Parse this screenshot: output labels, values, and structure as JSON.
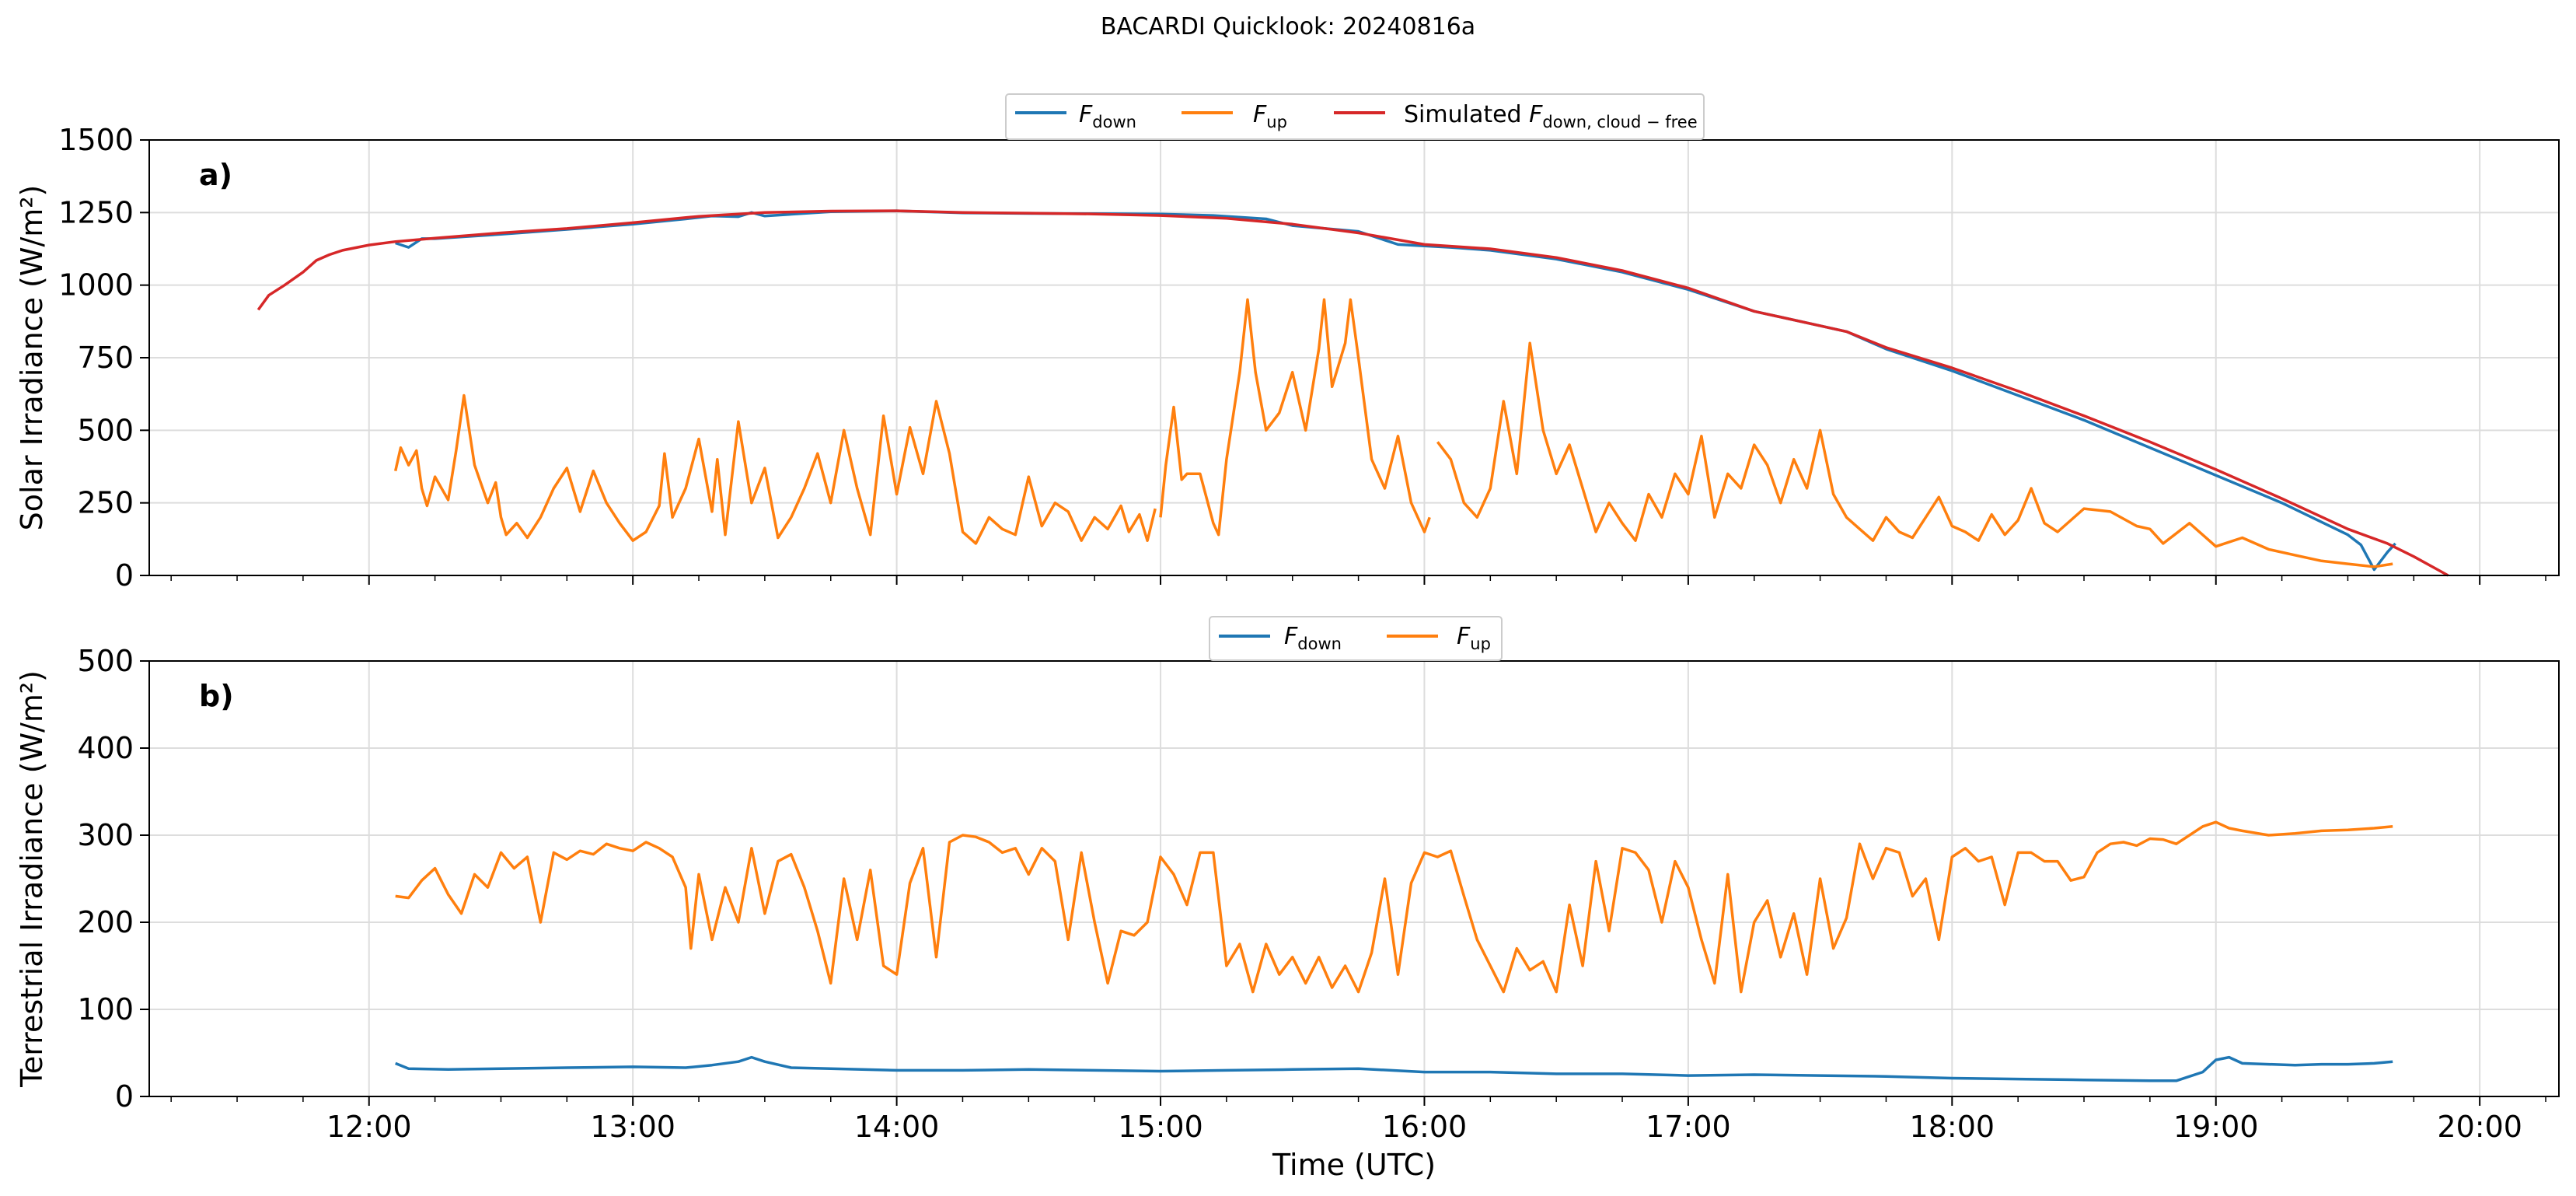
{
  "figure": {
    "suptitle": "BACARDI Quicklook: 20240816a"
  },
  "xaxis": {
    "label": "Time (UTC)",
    "lim": [
      11.167,
      20.3
    ],
    "ticks": [
      12,
      13,
      14,
      15,
      16,
      17,
      18,
      19,
      20
    ],
    "tick_labels": [
      "12:00",
      "13:00",
      "14:00",
      "15:00",
      "16:00",
      "17:00",
      "18:00",
      "19:00",
      "20:00"
    ],
    "minor_step": 0.25
  },
  "colors": {
    "fdown": "#1f77b4",
    "fup": "#ff7f0e",
    "sim": "#d62728",
    "grid": "#dddddd"
  },
  "chart_data": [
    {
      "type": "line",
      "panel": "a)",
      "ylabel": "Solar Irradiance (W/m²)",
      "ylim": [
        0,
        1500
      ],
      "yticks": [
        0,
        250,
        500,
        750,
        1000,
        1250,
        1500
      ],
      "grid": true,
      "legend": {
        "placement": "top-center, above axes",
        "entries": [
          "F_down",
          "F_up",
          "Simulated F_down,cloud−free"
        ]
      },
      "series": [
        {
          "name": "F_down",
          "key": "fdown",
          "x": [
            12.1,
            12.15,
            12.2,
            12.25,
            12.5,
            12.75,
            13.0,
            13.2,
            13.3,
            13.4,
            13.45,
            13.5,
            13.75,
            14.0,
            14.25,
            14.5,
            14.75,
            15.0,
            15.2,
            15.4,
            15.5,
            15.75,
            15.9,
            16.0,
            16.1,
            16.25,
            16.5,
            16.75,
            17.0,
            17.25,
            17.5,
            17.6,
            17.75,
            18.0,
            18.25,
            18.5,
            18.75,
            19.0,
            19.25,
            19.5,
            19.55,
            19.6,
            19.65,
            19.68
          ],
          "y": [
            1145,
            1130,
            1160,
            1160,
            1175,
            1192,
            1210,
            1228,
            1238,
            1236,
            1250,
            1238,
            1253,
            1256,
            1249,
            1247,
            1246,
            1245,
            1240,
            1228,
            1205,
            1185,
            1140,
            1135,
            1130,
            1120,
            1090,
            1045,
            985,
            910,
            860,
            840,
            780,
            705,
            620,
            535,
            440,
            345,
            250,
            140,
            105,
            20,
            80,
            110
          ]
        },
        {
          "name": "F_up",
          "key": "fup",
          "x": [
            12.1,
            12.12,
            12.15,
            12.18,
            12.2,
            12.22,
            12.25,
            12.3,
            12.33,
            12.36,
            12.4,
            12.45,
            12.48,
            12.5,
            12.52,
            12.56,
            12.6,
            12.65,
            12.7,
            12.75,
            12.8,
            12.85,
            12.9,
            12.95,
            13.0,
            13.05,
            13.1,
            13.12,
            13.15,
            13.2,
            13.25,
            13.3,
            13.32,
            13.35,
            13.4,
            13.45,
            13.5,
            13.55,
            13.6,
            13.65,
            13.7,
            13.75,
            13.8,
            13.85,
            13.9,
            13.95,
            14.0,
            14.05,
            14.1,
            14.15,
            14.2,
            14.25,
            14.3,
            14.35,
            14.4,
            14.45,
            14.5,
            14.55,
            14.6,
            14.65,
            14.7,
            14.75,
            14.8,
            14.85,
            14.88,
            14.92,
            14.95,
            14.98
          ],
          "y": [
            360,
            440,
            380,
            430,
            300,
            240,
            340,
            260,
            430,
            620,
            380,
            250,
            320,
            200,
            140,
            180,
            130,
            200,
            300,
            370,
            220,
            360,
            250,
            180,
            120,
            150,
            240,
            420,
            200,
            300,
            470,
            220,
            400,
            140,
            530,
            250,
            370,
            130,
            200,
            300,
            420,
            250,
            500,
            300,
            140,
            550,
            280,
            510,
            350,
            600,
            420,
            150,
            110,
            200,
            160,
            140,
            340,
            170,
            250,
            220,
            120,
            200,
            160,
            240,
            150,
            210,
            120,
            230
          ]
        },
        {
          "name": "F_up",
          "key": "fup",
          "x": [
            15.0,
            15.02,
            15.05,
            15.08,
            15.1,
            15.15,
            15.2,
            15.22,
            15.25,
            15.3,
            15.33,
            15.36,
            15.4,
            15.45,
            15.5,
            15.55,
            15.6,
            15.62,
            15.65,
            15.7,
            15.72,
            15.75,
            15.8,
            15.85,
            15.9,
            15.95,
            16.0,
            16.02
          ],
          "y": [
            200,
            380,
            580,
            330,
            350,
            350,
            180,
            140,
            400,
            700,
            950,
            700,
            500,
            560,
            700,
            500,
            780,
            950,
            650,
            800,
            950,
            750,
            400,
            300,
            480,
            250,
            150,
            200
          ]
        },
        {
          "name": "F_up",
          "key": "fup",
          "x": [
            16.05,
            16.1,
            16.15,
            16.2,
            16.25,
            16.3,
            16.35,
            16.4,
            16.45,
            16.5,
            16.55,
            16.6,
            16.65,
            16.7,
            16.75,
            16.8,
            16.85,
            16.9,
            16.95,
            17.0,
            17.05,
            17.1,
            17.15,
            17.2,
            17.25,
            17.3,
            17.35,
            17.4,
            17.45,
            17.5,
            17.55,
            17.6,
            17.65,
            17.7,
            17.75,
            17.8,
            17.85,
            17.9,
            17.95,
            18.0,
            18.05,
            18.1,
            18.15,
            18.2,
            18.25,
            18.3,
            18.35,
            18.4,
            18.5,
            18.6,
            18.7,
            18.75,
            18.8,
            18.9,
            19.0,
            19.1,
            19.2,
            19.3,
            19.4,
            19.5,
            19.6,
            19.67
          ],
          "y": [
            460,
            400,
            250,
            200,
            300,
            600,
            350,
            800,
            500,
            350,
            450,
            300,
            150,
            250,
            180,
            120,
            280,
            200,
            350,
            280,
            480,
            200,
            350,
            300,
            450,
            380,
            250,
            400,
            300,
            500,
            280,
            200,
            160,
            120,
            200,
            150,
            130,
            200,
            270,
            170,
            150,
            120,
            210,
            140,
            190,
            300,
            180,
            150,
            230,
            220,
            170,
            160,
            110,
            180,
            100,
            130,
            90,
            70,
            50,
            40,
            30,
            40
          ]
        }
      ]
    },
    {
      "type": "line",
      "panel": "b)",
      "ylabel": "Terrestrial Irradiance (W/m²)",
      "ylim": [
        0,
        500
      ],
      "yticks": [
        0,
        100,
        200,
        300,
        400,
        500
      ],
      "grid": true,
      "legend": {
        "placement": "top-center, above axes",
        "entries": [
          "F_down",
          "F_up"
        ]
      },
      "series": [
        {
          "name": "F_down",
          "key": "fdown",
          "x": [
            12.1,
            12.15,
            12.3,
            12.5,
            12.75,
            13.0,
            13.2,
            13.3,
            13.4,
            13.45,
            13.5,
            13.6,
            13.75,
            14.0,
            14.25,
            14.5,
            14.75,
            15.0,
            15.25,
            15.5,
            15.75,
            16.0,
            16.25,
            16.5,
            16.75,
            17.0,
            17.25,
            17.5,
            17.75,
            18.0,
            18.25,
            18.5,
            18.75,
            18.85,
            18.95,
            19.0,
            19.05,
            19.1,
            19.2,
            19.3,
            19.4,
            19.5,
            19.6,
            19.67
          ],
          "y": [
            38,
            32,
            31,
            32,
            33,
            34,
            33,
            36,
            40,
            45,
            40,
            33,
            32,
            30,
            30,
            31,
            30,
            29,
            30,
            31,
            32,
            28,
            28,
            26,
            26,
            24,
            25,
            24,
            23,
            21,
            20,
            19,
            18,
            18,
            28,
            42,
            45,
            38,
            37,
            36,
            37,
            37,
            38,
            40
          ]
        },
        {
          "name": "F_up",
          "key": "fup",
          "x": [
            12.1,
            12.15,
            12.2,
            12.25,
            12.3,
            12.35,
            12.4,
            12.45,
            12.5,
            12.55,
            12.6,
            12.65,
            12.7,
            12.75,
            12.8,
            12.85,
            12.9,
            12.95,
            13.0,
            13.05,
            13.1,
            13.15,
            13.2,
            13.22,
            13.25,
            13.3,
            13.35,
            13.4,
            13.45,
            13.5,
            13.55,
            13.6,
            13.65,
            13.7,
            13.75,
            13.8,
            13.85,
            13.9,
            13.95,
            14.0,
            14.05,
            14.1,
            14.15,
            14.2,
            14.25,
            14.3,
            14.35,
            14.4,
            14.45,
            14.5,
            14.55,
            14.6,
            14.65,
            14.7,
            14.75,
            14.8,
            14.85,
            14.9,
            14.95,
            15.0,
            15.05,
            15.1,
            15.15,
            15.2,
            15.25,
            15.3,
            15.35,
            15.4,
            15.45,
            15.5,
            15.55,
            15.6,
            15.65,
            15.7,
            15.75,
            15.8,
            15.85,
            15.9,
            15.95,
            16.0,
            16.05,
            16.1,
            16.15,
            16.2,
            16.25,
            16.3,
            16.35,
            16.4,
            16.45,
            16.5,
            16.55,
            16.6,
            16.65,
            16.7,
            16.75,
            16.8,
            16.85,
            16.9,
            16.95,
            17.0,
            17.05,
            17.1,
            17.15,
            17.2,
            17.25,
            17.3,
            17.35,
            17.4,
            17.45,
            17.5,
            17.55,
            17.6,
            17.65,
            17.7,
            17.75,
            17.8,
            17.85,
            17.9,
            17.95,
            18.0,
            18.05,
            18.1,
            18.15,
            18.2,
            18.25,
            18.3,
            18.35,
            18.4,
            18.45,
            18.5,
            18.55,
            18.6,
            18.65,
            18.7,
            18.75,
            18.8,
            18.85,
            18.9,
            18.95,
            19.0,
            19.05,
            19.1,
            19.2,
            19.3,
            19.4,
            19.5,
            19.6,
            19.67
          ],
          "y": [
            230,
            228,
            248,
            262,
            232,
            210,
            255,
            240,
            280,
            262,
            275,
            200,
            280,
            272,
            282,
            278,
            290,
            285,
            282,
            292,
            285,
            275,
            240,
            170,
            255,
            180,
            240,
            200,
            285,
            210,
            270,
            278,
            240,
            190,
            130,
            250,
            180,
            260,
            150,
            140,
            245,
            285,
            160,
            292,
            300,
            298,
            292,
            280,
            285,
            255,
            285,
            270,
            180,
            280,
            200,
            130,
            190,
            185,
            200,
            275,
            255,
            220,
            280,
            280,
            150,
            175,
            120,
            175,
            140,
            160,
            130,
            160,
            125,
            150,
            120,
            165,
            250,
            140,
            245,
            280,
            275,
            282,
            230,
            180,
            150,
            120,
            170,
            145,
            155,
            120,
            220,
            150,
            270,
            190,
            285,
            280,
            260,
            200,
            270,
            240,
            180,
            130,
            255,
            120,
            200,
            225,
            160,
            210,
            140,
            250,
            170,
            205,
            290,
            250,
            285,
            280,
            230,
            250,
            180,
            275,
            285,
            270,
            275,
            220,
            280,
            280,
            270,
            270,
            248,
            252,
            280,
            290,
            292,
            288,
            296,
            295,
            290,
            300,
            310,
            315,
            308,
            305,
            300,
            302,
            305,
            306,
            308,
            310
          ]
        }
      ]
    },
    {
      "type": "line",
      "panel": "a)",
      "overlay": true,
      "series": [
        {
          "name": "Simulated F_down,cloud−free",
          "key": "sim",
          "x": [
            11.58,
            11.62,
            11.68,
            11.75,
            11.8,
            11.85,
            11.9,
            12.0,
            12.1,
            12.25,
            12.5,
            12.75,
            13.0,
            13.25,
            13.5,
            13.75,
            14.0,
            14.25,
            14.5,
            14.75,
            15.0,
            15.25,
            15.5,
            15.75,
            16.0,
            16.25,
            16.5,
            16.75,
            17.0,
            17.25,
            17.5,
            17.6,
            17.75,
            18.0,
            18.25,
            18.5,
            18.75,
            19.0,
            19.25,
            19.5,
            19.65,
            19.75,
            19.85,
            19.88
          ],
          "y": [
            915,
            965,
            1000,
            1045,
            1085,
            1105,
            1120,
            1138,
            1150,
            1162,
            1180,
            1195,
            1215,
            1237,
            1250,
            1255,
            1256,
            1250,
            1248,
            1245,
            1240,
            1230,
            1210,
            1180,
            1140,
            1125,
            1095,
            1050,
            990,
            910,
            860,
            840,
            785,
            715,
            635,
            550,
            460,
            365,
            265,
            160,
            110,
            65,
            15,
            0
          ]
        }
      ]
    }
  ]
}
